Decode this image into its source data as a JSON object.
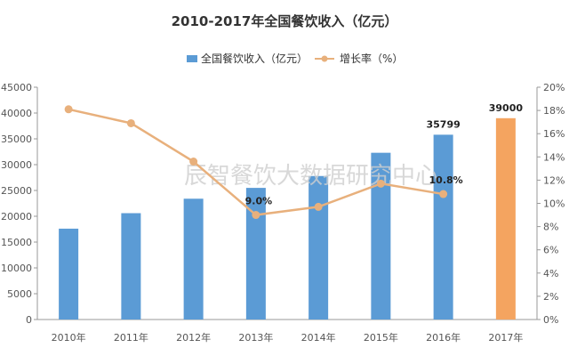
{
  "chart_data": {
    "type": "bar+line",
    "title": "2010-2017年全国餐饮收入（亿元）",
    "categories": [
      "2010年",
      "2011年",
      "2012年",
      "2013年",
      "2014年",
      "2015年",
      "2016年",
      "2017年"
    ],
    "series": [
      {
        "name": "全国餐饮收入（亿元）",
        "type": "bar",
        "axis": "left",
        "color": "#5b9bd5",
        "values": [
          17600,
          20600,
          23400,
          25500,
          27800,
          32300,
          35799,
          39000
        ],
        "colors_override": {
          "7": "#f4a460"
        }
      },
      {
        "name": "增长率（%）",
        "type": "line",
        "axis": "right",
        "color": "#e8b07c",
        "values": [
          18.1,
          16.9,
          13.6,
          9.0,
          9.7,
          11.7,
          10.8,
          null
        ]
      }
    ],
    "left_axis": {
      "min": 0,
      "max": 45000,
      "step": 5000,
      "ticks": [
        "0",
        "5000",
        "10000",
        "15000",
        "20000",
        "25000",
        "30000",
        "35000",
        "40000",
        "45000"
      ]
    },
    "right_axis": {
      "min": 0,
      "max": 20,
      "step": 2,
      "ticks": [
        "0%",
        "2%",
        "4%",
        "6%",
        "8%",
        "10%",
        "12%",
        "14%",
        "16%",
        "18%",
        "20%"
      ]
    },
    "data_labels": [
      {
        "series": 0,
        "index": 6,
        "text": "35799"
      },
      {
        "series": 0,
        "index": 7,
        "text": "39000"
      },
      {
        "series": 1,
        "index": 3,
        "text": "9.0%"
      },
      {
        "series": 1,
        "index": 6,
        "text": "10.8%"
      }
    ],
    "legend_position": "top-center",
    "grid": false,
    "watermark": "辰智餐饮大数据研究中心"
  }
}
